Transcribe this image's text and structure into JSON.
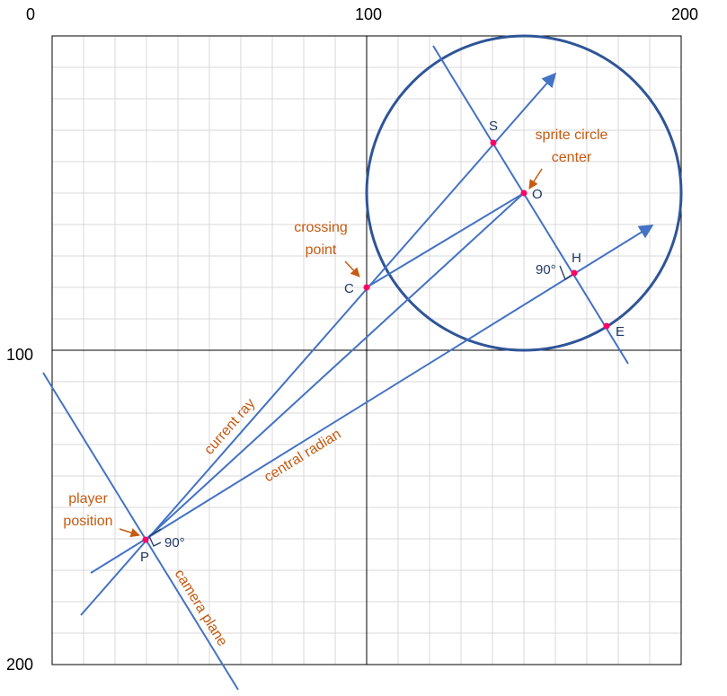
{
  "axes": {
    "x_ticks": [
      "0",
      "100",
      "200"
    ],
    "y_ticks": [
      "100",
      "200"
    ]
  },
  "points": {
    "S": "S",
    "O": "O",
    "C": "C",
    "H": "H",
    "E": "E",
    "P": "P"
  },
  "angles": {
    "at_H": "90°",
    "at_P": "90°"
  },
  "annotations": {
    "sprite_center_line1": "sprite circle",
    "sprite_center_line2": "center",
    "crossing_line1": "crossing",
    "crossing_line2": "point",
    "player_line1": "player",
    "player_line2": "position",
    "current_ray": "current ray",
    "central_radian": "central radian",
    "camera_plane": "camera plane"
  },
  "colors": {
    "line": "#4472c4",
    "circle": "#2f5597",
    "point": "#ff0066",
    "annotation": "#c55a11",
    "label": "#1f3864",
    "grid": "#d9d9d9"
  }
}
